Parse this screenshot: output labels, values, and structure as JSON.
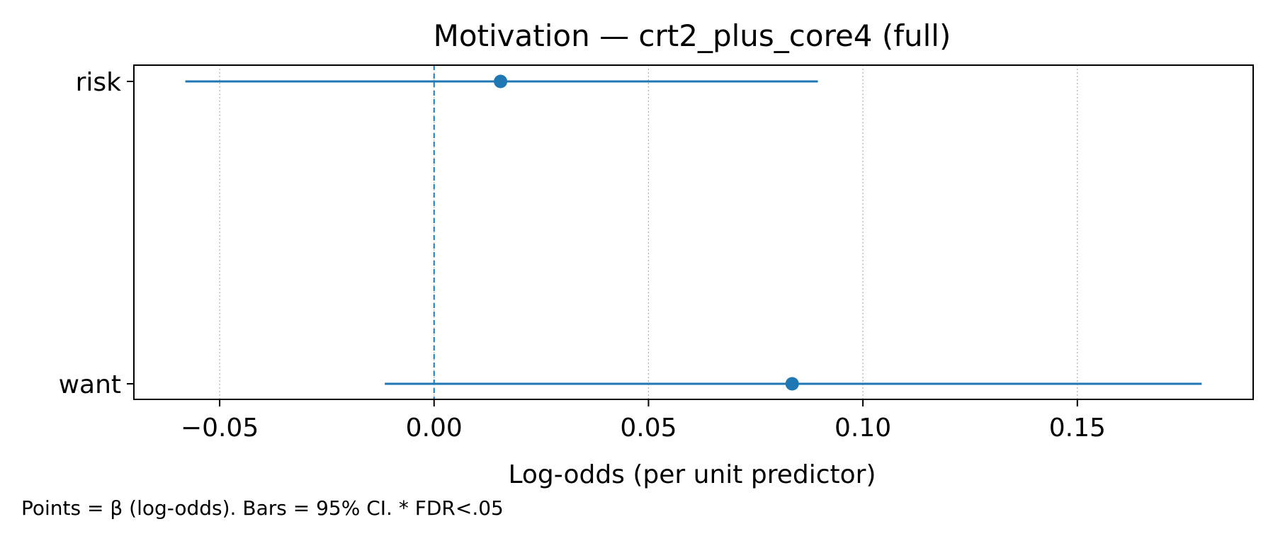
{
  "chart_data": {
    "type": "forest",
    "title": "Motivation — crt2_plus_core4 (full)",
    "xlabel": "Log-odds (per unit predictor)",
    "ylabel": "",
    "footnote": "Points = β (log-odds). Bars = 95% CI. * FDR<.05",
    "xlim": [
      -0.07,
      0.191
    ],
    "xticks": [
      -0.05,
      0.0,
      0.05,
      0.1,
      0.15
    ],
    "xtick_labels": [
      "−0.05",
      "0.00",
      "0.05",
      "0.10",
      "0.15"
    ],
    "grid": "x-dotted",
    "reference_line": 0.0,
    "color": "#1f77b4",
    "categories": [
      "risk",
      "want"
    ],
    "estimates": [
      {
        "label": "risk",
        "beta": 0.0155,
        "ci_low": -0.058,
        "ci_high": 0.0895
      },
      {
        "label": "want",
        "beta": 0.0835,
        "ci_low": -0.0115,
        "ci_high": 0.179
      }
    ]
  }
}
